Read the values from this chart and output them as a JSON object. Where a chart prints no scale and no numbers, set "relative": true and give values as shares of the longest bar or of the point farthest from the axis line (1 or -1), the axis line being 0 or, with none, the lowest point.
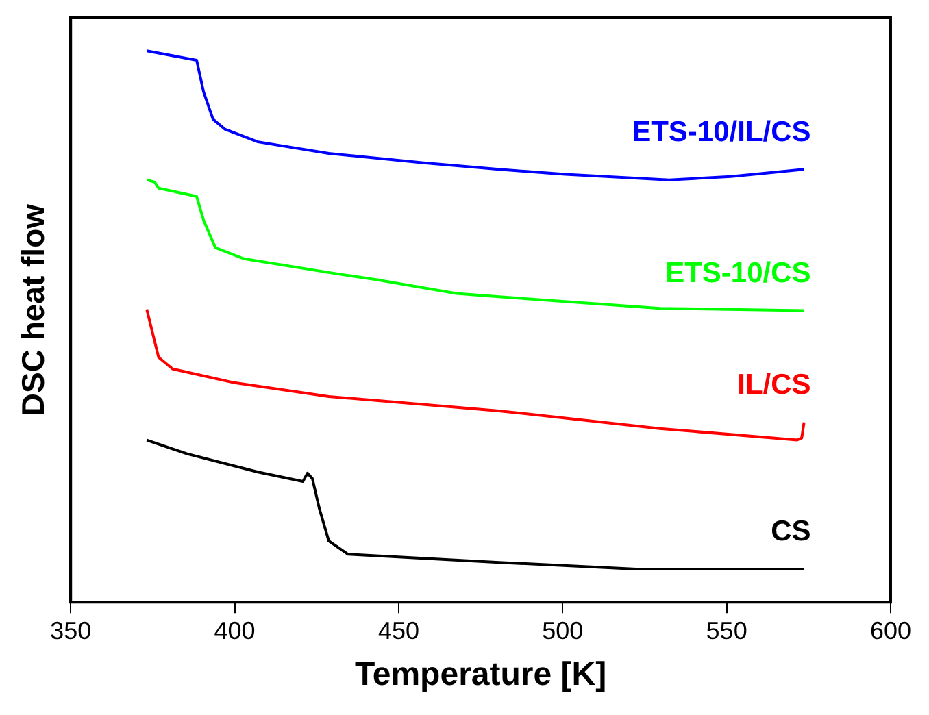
{
  "chart_data": {
    "type": "line",
    "xlabel": "Temperature [K]",
    "ylabel": "DSC heat flow",
    "relative": true,
    "xlim": [
      350,
      600
    ],
    "xticks": [
      350,
      400,
      450,
      500,
      550,
      600
    ],
    "marker": "none",
    "series": [
      {
        "name": "ETS-10/IL/CS",
        "color": "#0000ff",
        "x": [
          373.2,
          388.4,
          390.5,
          393.4,
          397,
          407.1,
          428.7,
          457.6,
          480.6,
          500.8,
          532.5,
          551.3,
          573.6
        ],
        "values": [
          1.0,
          0.983,
          0.926,
          0.876,
          0.858,
          0.835,
          0.814,
          0.797,
          0.785,
          0.776,
          0.766,
          0.772,
          0.785
        ]
      },
      {
        "name": "ETS-10/CS",
        "color": "#00ff00",
        "x": [
          373.2,
          375.6,
          376.8,
          388.4,
          390.5,
          394.1,
          402.8,
          428.7,
          443.1,
          467.6,
          480.6,
          529.6,
          573.6
        ],
        "values": [
          0.766,
          0.762,
          0.751,
          0.736,
          0.693,
          0.643,
          0.623,
          0.598,
          0.585,
          0.56,
          0.554,
          0.533,
          0.529
        ]
      },
      {
        "name": "IL/CS",
        "color": "#ff0000",
        "x": [
          373.2,
          376.8,
          381.1,
          399.9,
          428.7,
          480.6,
          529.6,
          571.5,
          572.9,
          573.6
        ],
        "values": [
          0.531,
          0.444,
          0.423,
          0.398,
          0.373,
          0.347,
          0.315,
          0.294,
          0.298,
          0.326
        ]
      },
      {
        "name": "CS",
        "color": "#000000",
        "x": [
          373.2,
          385.5,
          407.1,
          420.8,
          422.2,
          423.7,
          425.8,
          428.7,
          434.5,
          480.6,
          522.4,
          573.6
        ],
        "values": [
          0.294,
          0.269,
          0.236,
          0.219,
          0.234,
          0.224,
          0.17,
          0.111,
          0.087,
          0.072,
          0.06,
          0.06
        ]
      }
    ]
  }
}
